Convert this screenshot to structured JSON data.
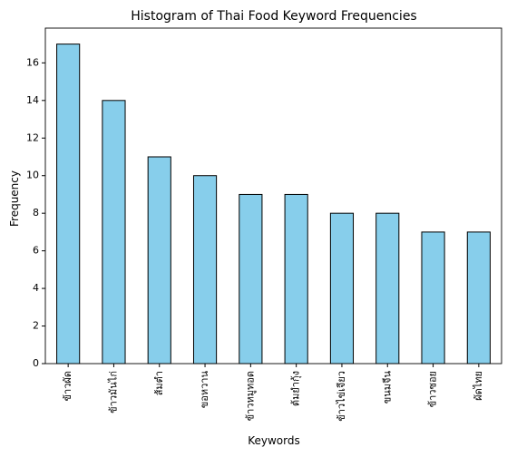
{
  "chart_data": {
    "type": "bar",
    "title": "Histogram of Thai Food Keyword Frequencies",
    "xlabel": "Keywords",
    "ylabel": "Frequency",
    "categories": [
      "ข้าวผัด",
      "ข้าวมันไก่",
      "ส้มตำ",
      "ขอหวาน",
      "ข้าวหมูทอด",
      "ต้มยำกุ้ง",
      "ข้าวไข่เจียว",
      "ขนมจีน",
      "ข้าวซอย",
      "ผัดไทย"
    ],
    "values": [
      17,
      14,
      11,
      10,
      9,
      9,
      8,
      8,
      7,
      7
    ],
    "ylim": [
      0,
      17.85
    ],
    "yticks": [
      0,
      2,
      4,
      6,
      8,
      10,
      12,
      14,
      16
    ],
    "bar_color": "#87ceeb",
    "edge_color": "#000000",
    "grid": false
  }
}
